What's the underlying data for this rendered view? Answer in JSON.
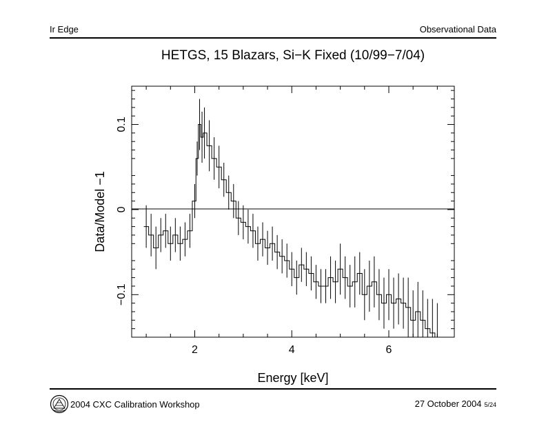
{
  "header": {
    "left": "Ir Edge",
    "right": "Observational Data"
  },
  "footer": {
    "workshop": "2004 CXC Calibration Workshop",
    "date": "27 October 2004",
    "page": "5/24",
    "logo_icon": "chandra-logo-icon"
  },
  "chart_data": {
    "type": "line",
    "style": "step histogram with vertical error bars",
    "title": "HETGS, 15 Blazars, Si−K Fixed (10/99−7/04)",
    "xlabel": "Energy [keV]",
    "ylabel": "Data/Model −1",
    "xlim": [
      0.7,
      7.35
    ],
    "ylim": [
      -0.15,
      0.145
    ],
    "xticks": [
      2,
      4,
      6
    ],
    "xtick_labels": [
      "2",
      "4",
      "6"
    ],
    "yticks": [
      -0.1,
      0,
      0.1
    ],
    "ytick_labels": [
      "−0.1",
      "0",
      "0.1"
    ],
    "reference_line_y": 0,
    "series": [
      {
        "name": "Data/Model −1",
        "x": [
          1.0,
          1.1,
          1.2,
          1.3,
          1.4,
          1.5,
          1.6,
          1.7,
          1.8,
          1.9,
          2.0,
          2.05,
          2.1,
          2.15,
          2.2,
          2.3,
          2.4,
          2.5,
          2.6,
          2.7,
          2.8,
          2.9,
          3.0,
          3.1,
          3.2,
          3.3,
          3.4,
          3.5,
          3.6,
          3.7,
          3.8,
          3.9,
          4.0,
          4.1,
          4.2,
          4.3,
          4.4,
          4.5,
          4.6,
          4.7,
          4.8,
          4.9,
          5.0,
          5.1,
          5.2,
          5.3,
          5.4,
          5.5,
          5.6,
          5.7,
          5.8,
          5.9,
          6.0,
          6.1,
          6.2,
          6.3,
          6.4,
          6.5,
          6.6,
          6.7,
          6.8,
          6.9,
          7.0
        ],
        "values": [
          -0.02,
          -0.03,
          -0.045,
          -0.03,
          -0.025,
          -0.04,
          -0.03,
          -0.04,
          -0.035,
          -0.025,
          0.01,
          0.06,
          0.1,
          0.085,
          0.09,
          0.075,
          0.06,
          0.05,
          0.035,
          0.02,
          0.01,
          -0.01,
          -0.015,
          -0.02,
          -0.025,
          -0.04,
          -0.035,
          -0.045,
          -0.04,
          -0.05,
          -0.055,
          -0.06,
          -0.07,
          -0.08,
          -0.065,
          -0.07,
          -0.075,
          -0.085,
          -0.09,
          -0.09,
          -0.08,
          -0.085,
          -0.07,
          -0.08,
          -0.09,
          -0.085,
          -0.075,
          -0.1,
          -0.09,
          -0.085,
          -0.1,
          -0.11,
          -0.1,
          -0.11,
          -0.105,
          -0.11,
          -0.115,
          -0.13,
          -0.12,
          -0.13,
          -0.14,
          -0.145,
          -0.15
        ],
        "errors": [
          0.025,
          0.025,
          0.025,
          0.02,
          0.02,
          0.02,
          0.02,
          0.02,
          0.02,
          0.02,
          0.02,
          0.02,
          0.03,
          0.03,
          0.03,
          0.03,
          0.025,
          0.025,
          0.02,
          0.02,
          0.02,
          0.02,
          0.02,
          0.02,
          0.02,
          0.02,
          0.02,
          0.02,
          0.02,
          0.02,
          0.02,
          0.02,
          0.02,
          0.02,
          0.02,
          0.02,
          0.02,
          0.02,
          0.02,
          0.02,
          0.025,
          0.025,
          0.03,
          0.025,
          0.025,
          0.03,
          0.025,
          0.03,
          0.03,
          0.03,
          0.03,
          0.03,
          0.03,
          0.03,
          0.03,
          0.03,
          0.035,
          0.035,
          0.035,
          0.035,
          0.035,
          0.04,
          0.04
        ]
      }
    ]
  }
}
